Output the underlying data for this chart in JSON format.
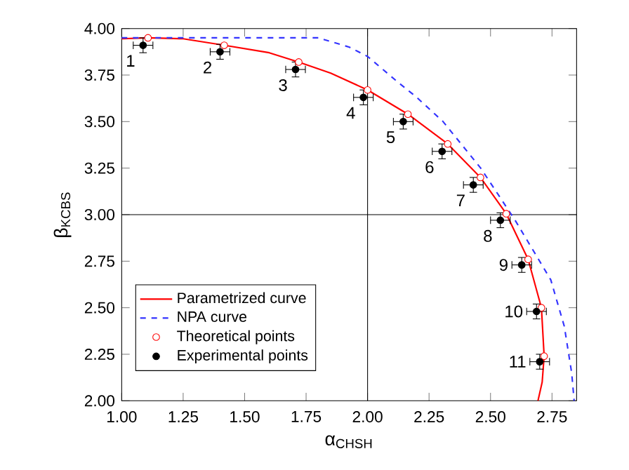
{
  "chart_data": {
    "type": "line",
    "xlabel": "α$_{CHSH}$",
    "ylabel": "β$_{KCBS}$",
    "xlim": [
      1.0,
      2.85
    ],
    "ylim": [
      2.0,
      4.0
    ],
    "xticks": [
      {
        "value": 1.0,
        "label": "1.00"
      },
      {
        "value": 1.25,
        "label": "1.25"
      },
      {
        "value": 1.5,
        "label": "1.50"
      },
      {
        "value": 1.75,
        "label": "1.75"
      },
      {
        "value": 2.0,
        "label": "2.00"
      },
      {
        "value": 2.25,
        "label": "2.25"
      },
      {
        "value": 2.5,
        "label": "2.50"
      },
      {
        "value": 2.75,
        "label": "2.75"
      }
    ],
    "yticks": [
      {
        "value": 2.0,
        "label": "2.00"
      },
      {
        "value": 2.25,
        "label": "2.25"
      },
      {
        "value": 2.5,
        "label": "2.50"
      },
      {
        "value": 2.75,
        "label": "2.75"
      },
      {
        "value": 3.0,
        "label": "3.00"
      },
      {
        "value": 3.25,
        "label": "3.25"
      },
      {
        "value": 3.5,
        "label": "3.50"
      },
      {
        "value": 3.75,
        "label": "3.75"
      },
      {
        "value": 4.0,
        "label": "4.00"
      }
    ],
    "legend": "bottom left",
    "grid": false,
    "ref_lines": [
      {
        "axis": "x",
        "value": 2.0,
        "color": "#000000"
      },
      {
        "axis": "y",
        "value": 3.0,
        "color": "#000000"
      }
    ],
    "series": [
      {
        "name": "Parametrized curve",
        "color": "#ff0000",
        "line_style": "solid",
        "marker": "none",
        "x": [
          1.0,
          1.107,
          1.25,
          1.417,
          1.6,
          1.72,
          1.85,
          2.0,
          2.164,
          2.326,
          2.459,
          2.564,
          2.653,
          2.707,
          2.718,
          2.71,
          2.693
        ],
        "values": [
          3.945,
          3.95,
          3.945,
          3.91,
          3.87,
          3.82,
          3.76,
          3.67,
          3.54,
          3.38,
          3.2,
          3.005,
          2.76,
          2.5,
          2.24,
          2.1,
          2.0
        ]
      },
      {
        "name": "NPA curve",
        "color": "#3333ff",
        "line_style": "dashed",
        "marker": "none",
        "x": [
          1.0,
          1.5,
          1.8,
          1.926,
          2.0,
          2.116,
          2.2,
          2.307,
          2.46,
          2.6,
          2.745,
          2.8,
          2.83,
          2.84
        ],
        "values": [
          3.95,
          3.95,
          3.95,
          3.9,
          3.85,
          3.72,
          3.63,
          3.5,
          3.25,
          2.97,
          2.65,
          2.4,
          2.15,
          2.0
        ]
      },
      {
        "name": "Theoretical points",
        "type": "scatter",
        "color": "#ff0000",
        "marker": "circle",
        "x": [
          1.107,
          1.417,
          1.72,
          2.0,
          2.164,
          2.326,
          2.459,
          2.564,
          2.653,
          2.707,
          2.718
        ],
        "values": [
          3.95,
          3.91,
          3.82,
          3.67,
          3.54,
          3.38,
          3.2,
          3.005,
          2.76,
          2.5,
          2.24
        ]
      },
      {
        "name": "Experimental points",
        "type": "scatter",
        "color": "#000000",
        "marker": "circle",
        "x": [
          1.087,
          1.4,
          1.707,
          1.983,
          2.145,
          2.303,
          2.43,
          2.54,
          2.627,
          2.687,
          2.7
        ],
        "values": [
          3.91,
          3.875,
          3.78,
          3.63,
          3.5,
          3.34,
          3.16,
          2.97,
          2.73,
          2.48,
          2.21
        ],
        "errors": [
          0.04,
          0.04,
          0.04,
          0.04,
          0.04,
          0.04,
          0.04,
          0.04,
          0.04,
          0.04,
          0.04
        ],
        "xerrors": [
          0.04,
          0.04,
          0.04,
          0.04,
          0.04,
          0.04,
          0.04,
          0.04,
          0.04,
          0.04,
          0.04
        ]
      }
    ],
    "annotations": [
      {
        "text": "1",
        "x": 1.087,
        "y": 3.91
      },
      {
        "text": "2",
        "x": 1.4,
        "y": 3.875
      },
      {
        "text": "3",
        "x": 1.707,
        "y": 3.78
      },
      {
        "text": "4",
        "x": 1.983,
        "y": 3.63
      },
      {
        "text": "5",
        "x": 2.145,
        "y": 3.5
      },
      {
        "text": "6",
        "x": 2.303,
        "y": 3.34
      },
      {
        "text": "7",
        "x": 2.43,
        "y": 3.16
      },
      {
        "text": "8",
        "x": 2.54,
        "y": 2.97
      },
      {
        "text": "9",
        "x": 2.627,
        "y": 2.73
      },
      {
        "text": "10",
        "x": 2.687,
        "y": 2.48
      },
      {
        "text": "11",
        "x": 2.7,
        "y": 2.21
      }
    ]
  }
}
